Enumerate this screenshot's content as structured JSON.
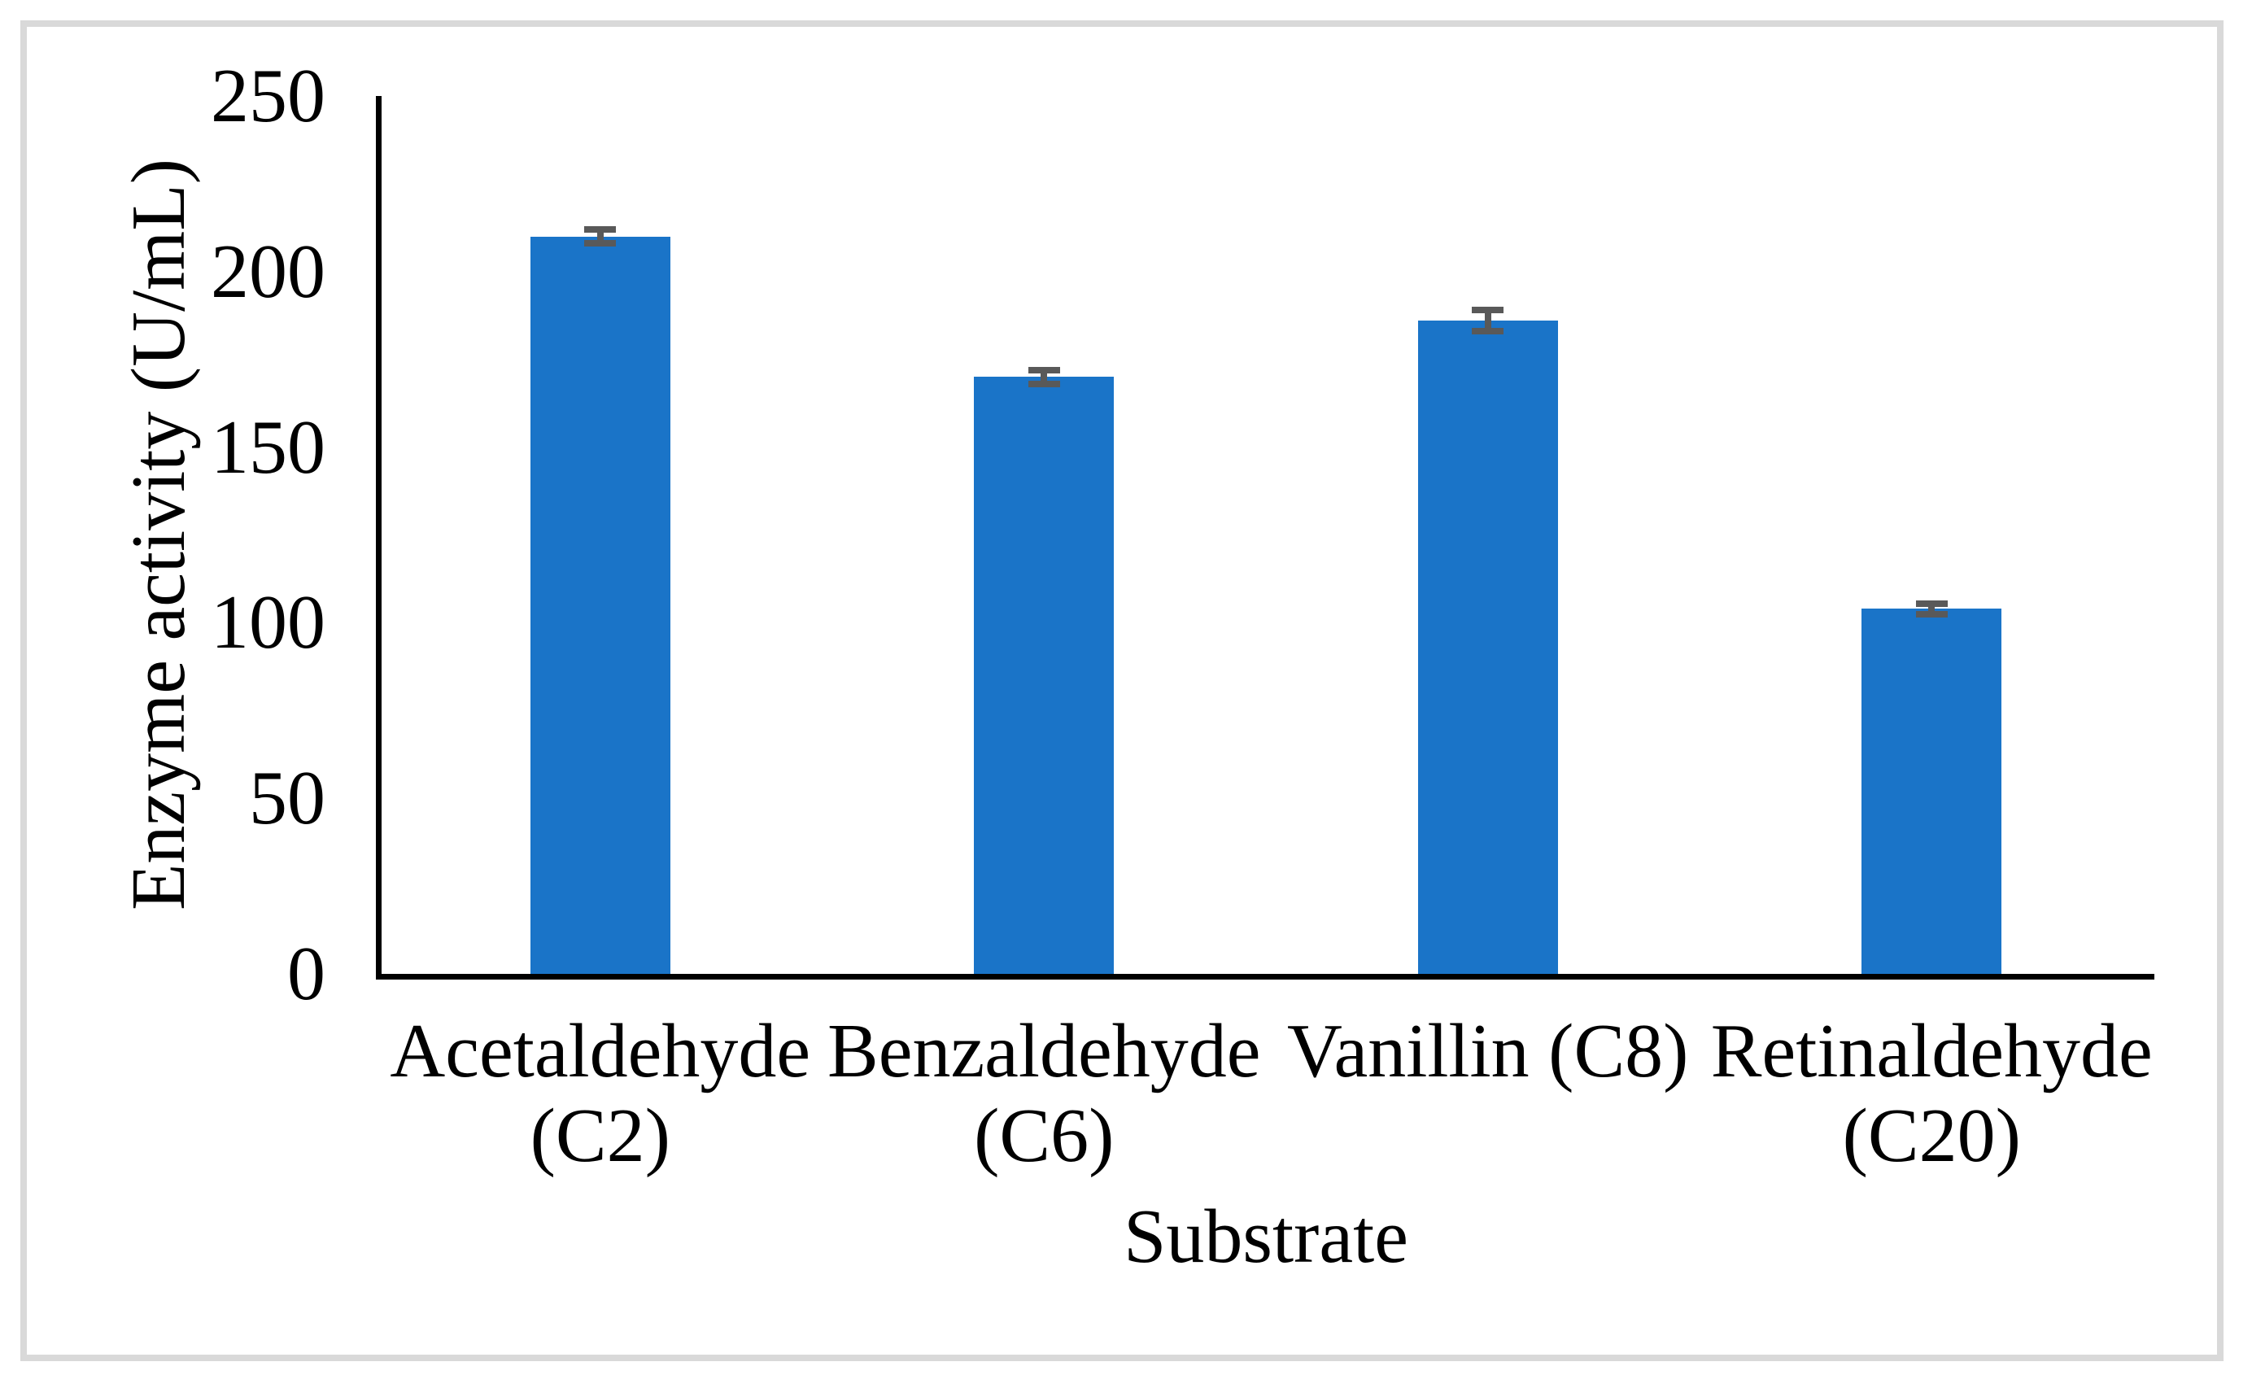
{
  "figure": {
    "background": "#FFFFFF",
    "border_color": "#D9D9D9"
  },
  "chart_data": {
    "type": "bar",
    "title": "",
    "xlabel": "Substrate",
    "ylabel": "Enzyme activity (U/mL)",
    "categories": [
      "Acetaldehyde (C2)",
      "Benzaldehyde (C6)",
      "Vanillin (C8)",
      "Retinaldehyde (C20)"
    ],
    "values": [
      210,
      170,
      186,
      104
    ],
    "error_bars": [
      2,
      2,
      3,
      1.5
    ],
    "ylim": [
      0,
      250
    ],
    "yticks": [
      0,
      50,
      100,
      150,
      200,
      250
    ],
    "grid": false,
    "legend": "none",
    "bar_color": "#1A74C8",
    "error_bar_color": "#595959",
    "axis_color": "#000000"
  }
}
